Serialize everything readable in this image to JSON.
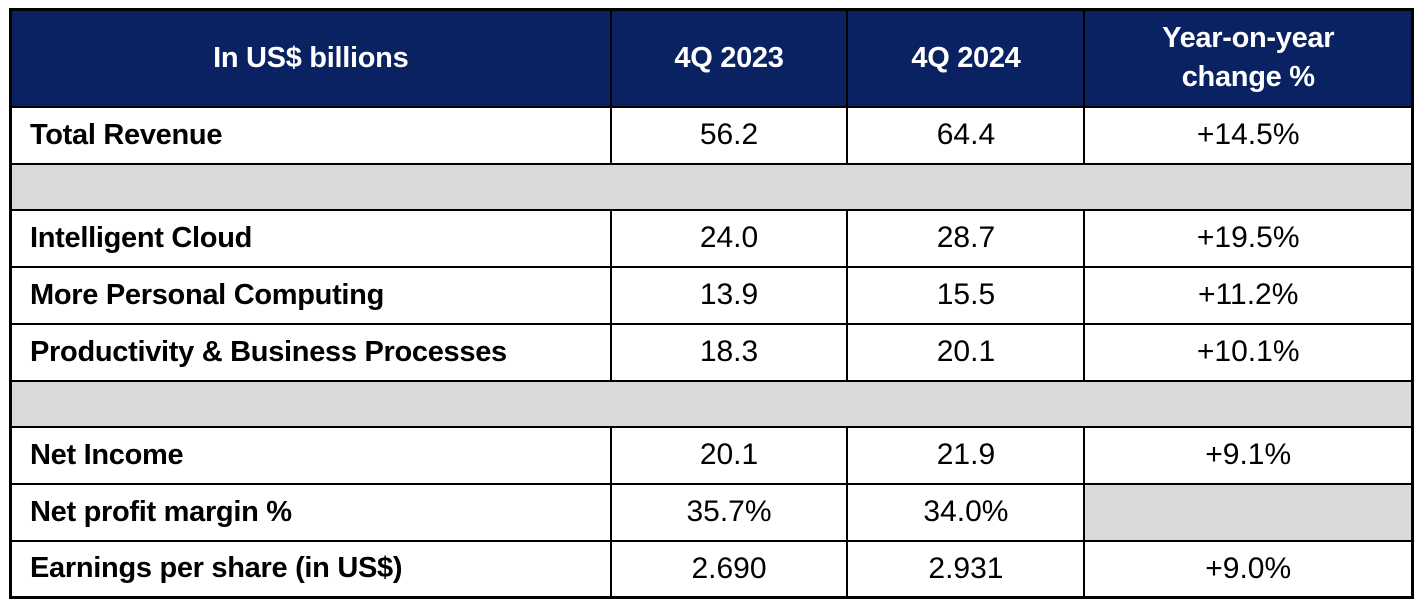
{
  "colors": {
    "header_bg": "#0a2162",
    "header_text": "#ffffff",
    "spacer_bg": "#d9d9d9",
    "border": "#000000",
    "body_text": "#000000"
  },
  "table": {
    "header": {
      "metric_label": "In US$ billions",
      "col_2023": "4Q 2023",
      "col_2024": "4Q 2024",
      "col_change": "Year-on-year change %"
    },
    "rows": [
      {
        "type": "data",
        "label": "Total Revenue",
        "q4_2023": "56.2",
        "q4_2024": "64.4",
        "yoy_change": "+14.5%"
      },
      {
        "type": "spacer"
      },
      {
        "type": "data",
        "label": "Intelligent Cloud",
        "q4_2023": "24.0",
        "q4_2024": "28.7",
        "yoy_change": "+19.5%"
      },
      {
        "type": "data",
        "label": "More Personal Computing",
        "q4_2023": "13.9",
        "q4_2024": "15.5",
        "yoy_change": "+11.2%"
      },
      {
        "type": "data",
        "label": "Productivity & Business Processes",
        "q4_2023": "18.3",
        "q4_2024": "20.1",
        "yoy_change": "+10.1%"
      },
      {
        "type": "spacer"
      },
      {
        "type": "data",
        "label": "Net Income",
        "q4_2023": "20.1",
        "q4_2024": "21.9",
        "yoy_change": "+9.1%"
      },
      {
        "type": "data",
        "label": "Net profit margin %",
        "q4_2023": "35.7%",
        "q4_2024": "34.0%",
        "yoy_change": null
      },
      {
        "type": "data",
        "label": "Earnings per share (in US$)",
        "q4_2023": "2.690",
        "q4_2024": "2.931",
        "yoy_change": "+9.0%"
      }
    ]
  },
  "chart_data": {
    "type": "table",
    "title": "In US$ billions",
    "columns": [
      "In US$ billions",
      "4Q 2023",
      "4Q 2024",
      "Year-on-year change %"
    ],
    "rows": [
      [
        "Total Revenue",
        56.2,
        64.4,
        "+14.5%"
      ],
      [
        "Intelligent Cloud",
        24.0,
        28.7,
        "+19.5%"
      ],
      [
        "More Personal Computing",
        13.9,
        15.5,
        "+11.2%"
      ],
      [
        "Productivity & Business Processes",
        18.3,
        20.1,
        "+10.1%"
      ],
      [
        "Net Income",
        20.1,
        21.9,
        "+9.1%"
      ],
      [
        "Net profit margin %",
        "35.7%",
        "34.0%",
        null
      ],
      [
        "Earnings per share (in US$)",
        2.69,
        2.931,
        "+9.0%"
      ]
    ],
    "notes": "Gray spacer bands separate Total Revenue, segment revenue, and profitability sections; Net profit margin % has no year-on-year change value (gray cell)."
  }
}
